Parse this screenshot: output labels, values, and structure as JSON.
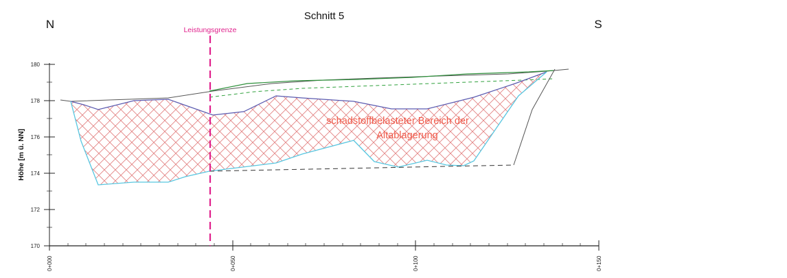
{
  "title": "Schnitt 5",
  "direction_left": "N",
  "direction_right": "S",
  "y_axis": {
    "label": "Höhe [m ü. NN]",
    "ticks": [
      "170",
      "172",
      "174",
      "176",
      "178",
      "180"
    ]
  },
  "x_axis": {
    "ticks": [
      "0+000",
      "0+050",
      "0+100",
      "0+150"
    ]
  },
  "boundary_label": "Leistungsgrenze",
  "zone_label_line1": "schadstoffbelasteter Bereich der",
  "zone_label_line2": "Altablagerung",
  "colors": {
    "boundary": "#e0208c",
    "zone_hatch": "#d85a5a",
    "zone_text": "#f05a4a",
    "upper_surface": "#5b5bb0",
    "lower_surface": "#57c6e0",
    "green_line": "#2d8f3a",
    "green_dashed": "#2fa03c",
    "terrain": "#555555"
  }
}
